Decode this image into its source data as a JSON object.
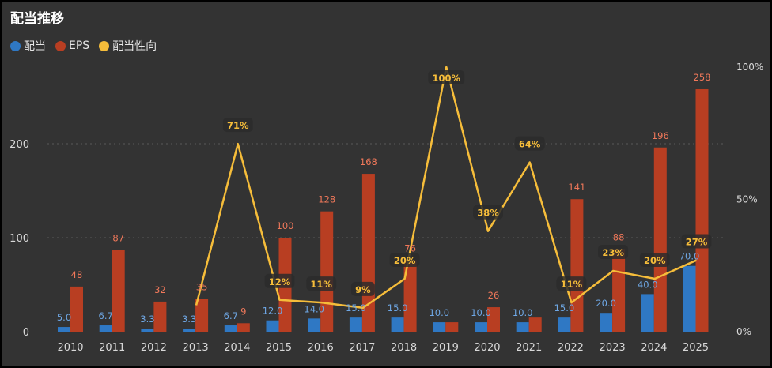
{
  "chart_data": {
    "type": "bar",
    "title": "配当推移",
    "categories": [
      "2010",
      "2011",
      "2012",
      "2013",
      "2014",
      "2015",
      "2016",
      "2017",
      "2018",
      "2019",
      "2020",
      "2021",
      "2022",
      "2023",
      "2024",
      "2025"
    ],
    "series": [
      {
        "name": "配当",
        "type": "bar",
        "axis": "left",
        "color": "#2f78c4",
        "values": [
          5.0,
          6.7,
          3.3,
          3.3,
          6.7,
          12.0,
          14.0,
          15.0,
          15.0,
          10.0,
          10.0,
          10.0,
          15.0,
          20.0,
          40.0,
          70.0
        ],
        "labels": [
          "5.0",
          "6.7",
          "3.3",
          "3.3",
          "6.7",
          "12.0",
          "14.0",
          "15.0",
          "15.0",
          "10.0",
          "10.0",
          "10.0",
          "15.0",
          "20.0",
          "40.0",
          "70.0"
        ]
      },
      {
        "name": "EPS",
        "type": "bar",
        "axis": "left",
        "color": "#b83e22",
        "values": [
          48,
          87,
          32,
          35,
          9,
          100,
          128,
          168,
          76,
          10,
          26,
          15,
          141,
          88,
          196,
          258
        ],
        "labels": [
          "48",
          "87",
          "32",
          "35",
          "9",
          "100",
          "128",
          "168",
          "76",
          "",
          "26",
          "",
          "141",
          "88",
          "196",
          "258"
        ]
      },
      {
        "name": "配当性向",
        "type": "line",
        "axis": "right",
        "color": "#f6bd3a",
        "values": [
          10,
          71,
          12,
          11,
          9,
          20,
          100,
          38,
          64,
          11,
          23,
          20,
          27
        ],
        "x": [
          "2013",
          "2014",
          "2015",
          "2016",
          "2017",
          "2018",
          "2019",
          "2020",
          "2021",
          "2022",
          "2023",
          "2024",
          "2025"
        ],
        "labels": [
          "",
          "71%",
          "12%",
          "11%",
          "9%",
          "20%",
          "100%",
          "38%",
          "64%",
          "11%",
          "23%",
          "20%",
          "27%"
        ]
      }
    ],
    "left_axis": {
      "ticks": [
        "0",
        "100",
        "200"
      ],
      "tick_values": [
        0,
        100,
        200
      ],
      "range": [
        0,
        280
      ]
    },
    "right_axis": {
      "ticks": [
        "0%",
        "50%",
        "100%"
      ],
      "tick_values": [
        0,
        50,
        100
      ],
      "range": [
        0,
        100
      ]
    },
    "grid": true,
    "legend_position": "top-left"
  },
  "colors": {
    "background": "#333333",
    "text": "#e6e6e6",
    "grid": "#555555"
  }
}
